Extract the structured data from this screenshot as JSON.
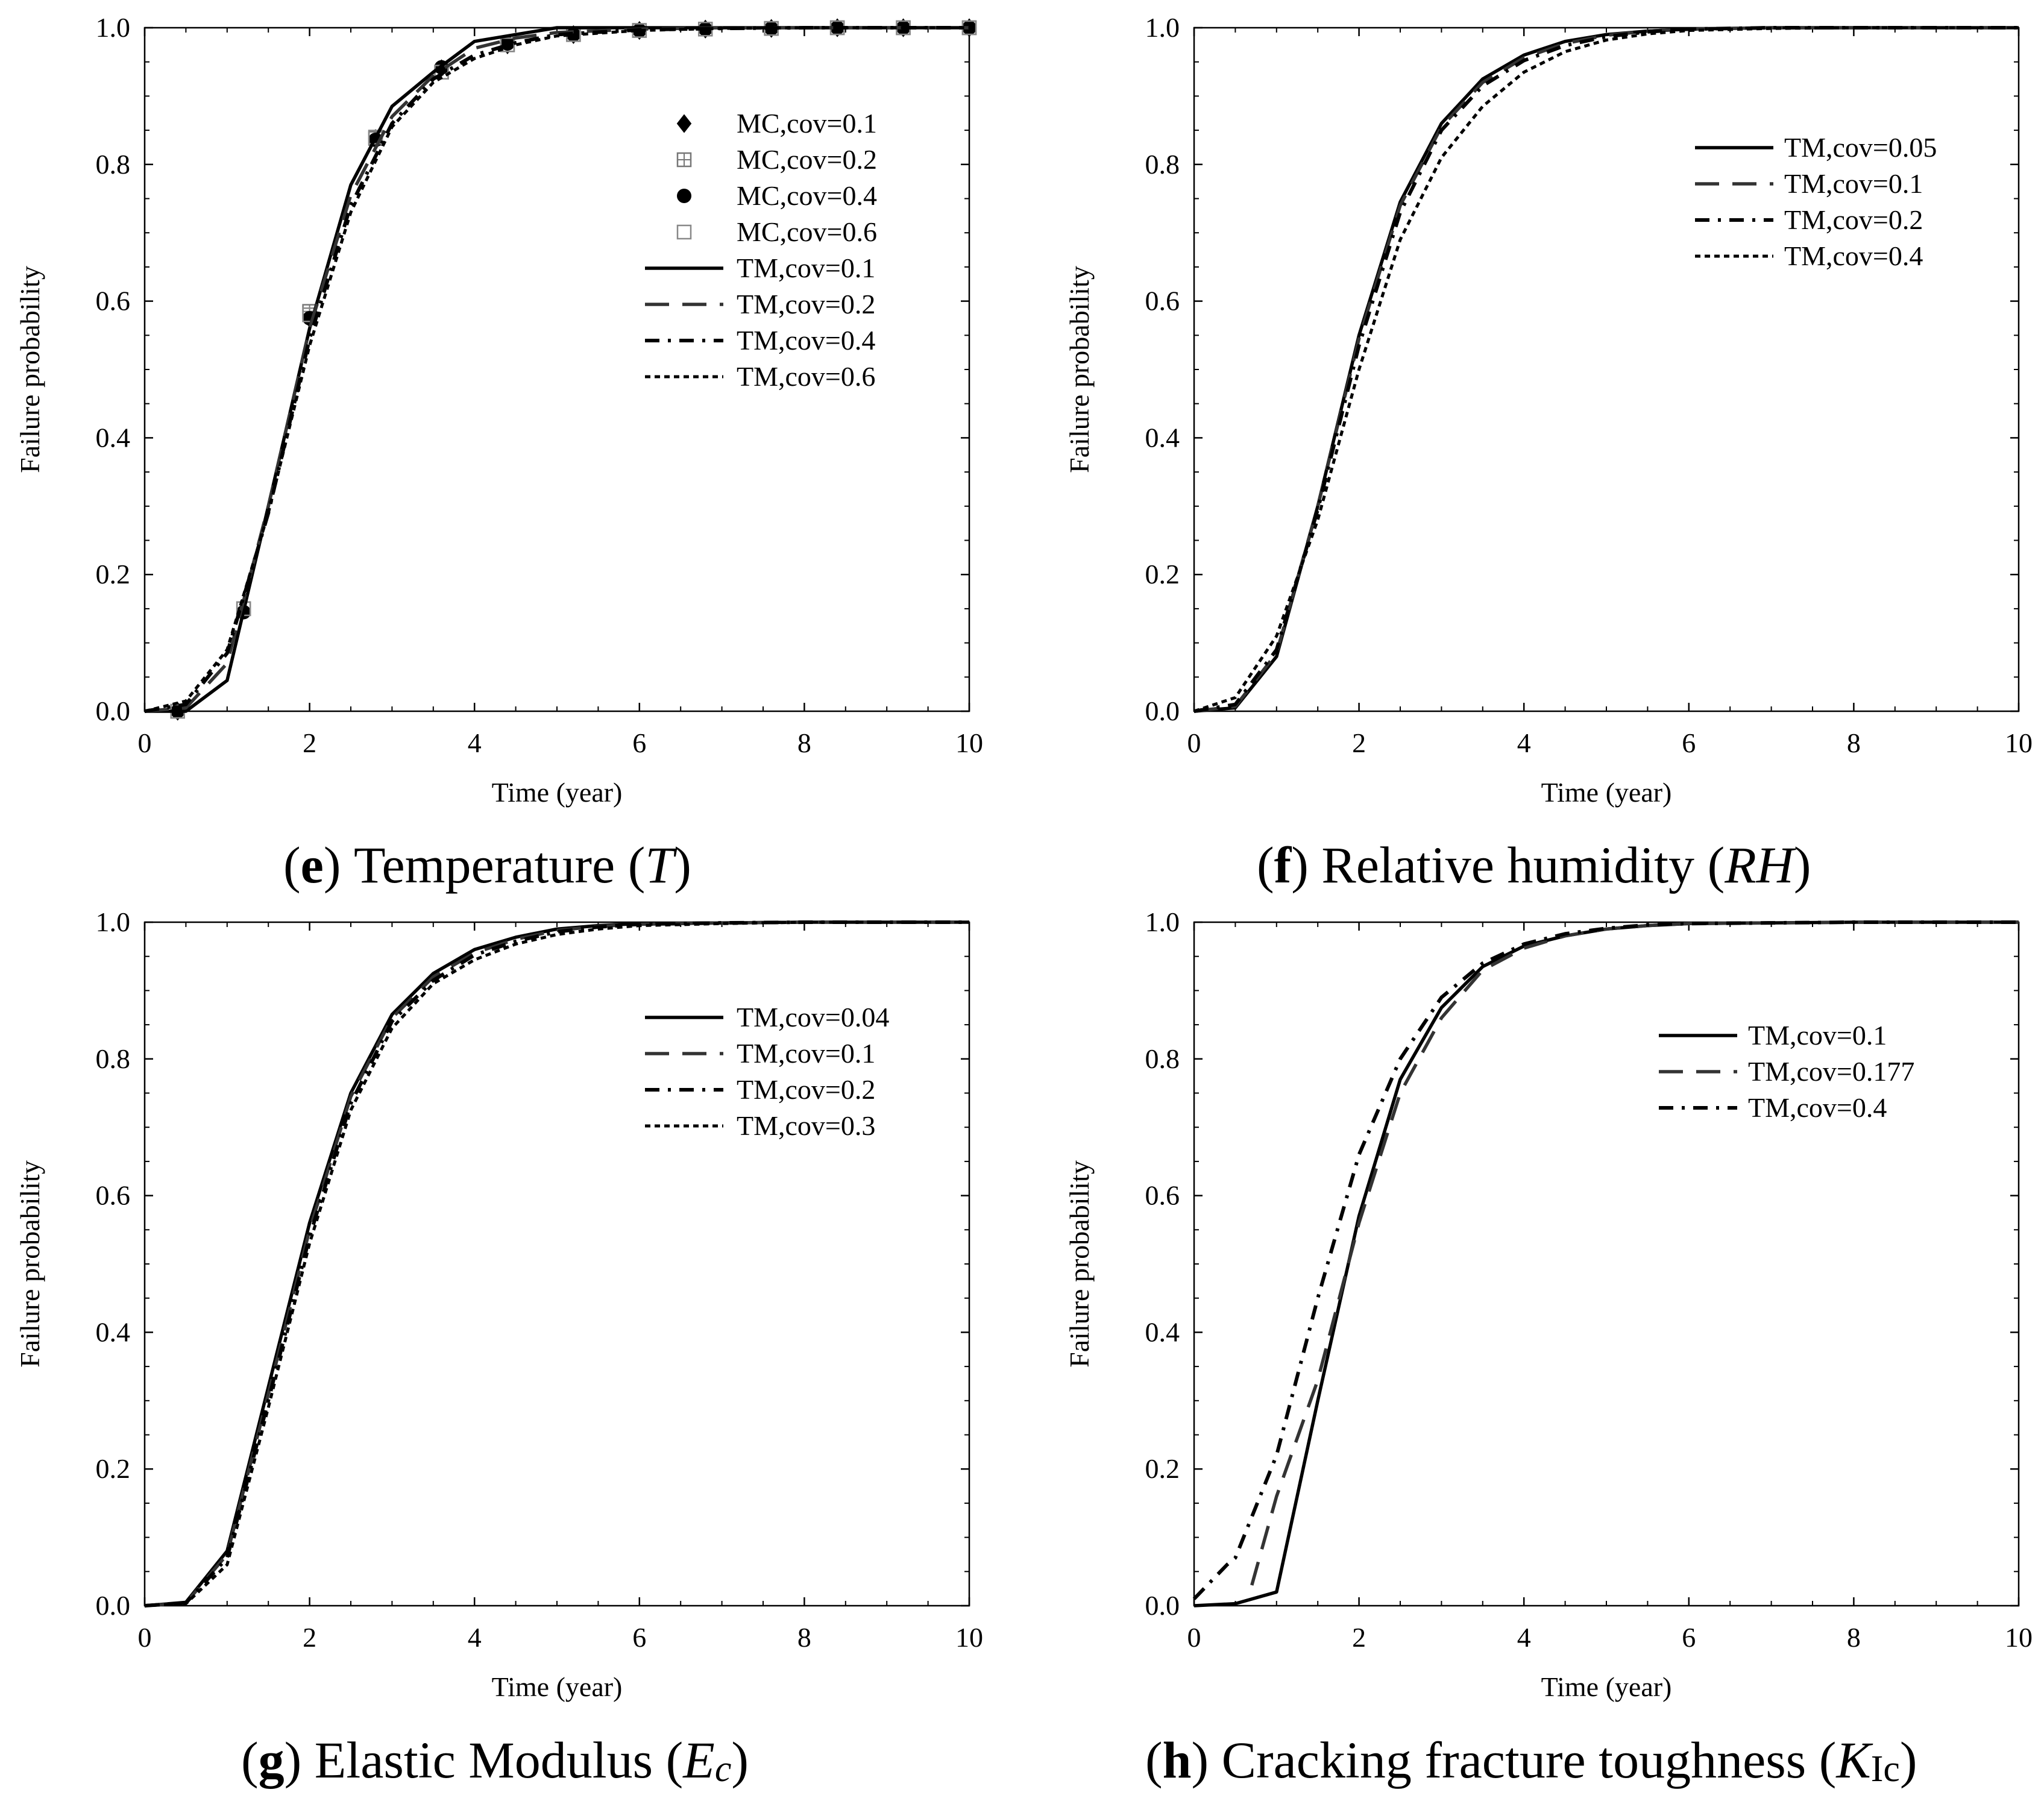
{
  "chart_data": [
    {
      "type": "line",
      "panel": "e",
      "caption": {
        "letter": "e",
        "text": "Temperature",
        "symbol": "T",
        "open": "(",
        "close": ")"
      },
      "xlabel": "Time (year)",
      "ylabel": "Failure probability",
      "xlim": [
        0,
        10
      ],
      "ylim": [
        0,
        1
      ],
      "xticks": [
        "0",
        "2",
        "4",
        "6",
        "8",
        "10"
      ],
      "yticks": [
        "0.0",
        "0.2",
        "0.4",
        "0.6",
        "0.8",
        "1.0"
      ],
      "legend_position": "top-right",
      "series": [
        {
          "name": "MC,cov=0.1",
          "kind": "marker",
          "marker": "diamond",
          "x": [
            0.4,
            1.2,
            2.0,
            2.8,
            3.6,
            4.4,
            5.2,
            6.0,
            6.8,
            7.6,
            8.4,
            9.2,
            10
          ],
          "y": [
            0.0,
            0.15,
            0.575,
            0.838,
            0.94,
            0.975,
            0.99,
            0.996,
            0.998,
            0.999,
            1.0,
            1.0,
            1.0
          ]
        },
        {
          "name": "MC,cov=0.2",
          "kind": "marker",
          "marker": "square-plus",
          "x": [
            0.4,
            1.2,
            2.0,
            2.8,
            3.6,
            4.4,
            5.2,
            6.0,
            6.8,
            7.6,
            8.4,
            9.2,
            10
          ],
          "y": [
            0.0,
            0.15,
            0.585,
            0.838,
            0.935,
            0.975,
            0.99,
            0.996,
            0.998,
            0.999,
            1.0,
            1.0,
            1.0
          ]
        },
        {
          "name": "MC,cov=0.4",
          "kind": "marker",
          "marker": "circle",
          "x": [
            0.4,
            1.2,
            2.0,
            2.8,
            3.6,
            4.4,
            5.2,
            6.0,
            6.8,
            7.6,
            8.4,
            9.2,
            10
          ],
          "y": [
            0.0,
            0.145,
            0.575,
            0.836,
            0.942,
            0.977,
            0.99,
            0.996,
            0.998,
            0.999,
            1.0,
            1.0,
            1.0
          ]
        },
        {
          "name": "MC,cov=0.6",
          "kind": "marker",
          "marker": "open-square",
          "x": [
            0.4,
            1.2,
            2.0,
            2.8,
            3.6,
            4.4,
            5.2,
            6.0,
            6.8,
            7.6,
            8.4,
            9.2,
            10
          ],
          "y": [
            0.0,
            0.15,
            0.58,
            0.84,
            0.935,
            0.975,
            0.99,
            0.996,
            0.998,
            0.999,
            1.0,
            1.0,
            1.0
          ]
        },
        {
          "name": "TM,cov=0.1",
          "kind": "line",
          "dash": "solid",
          "x": [
            0,
            0.5,
            1.0,
            1.5,
            2.0,
            2.5,
            3.0,
            3.5,
            4.0,
            4.5,
            5.0,
            6.0,
            7.0,
            8.0,
            9.0,
            10.0
          ],
          "y": [
            0,
            0.0,
            0.045,
            0.3,
            0.56,
            0.77,
            0.885,
            0.935,
            0.98,
            0.99,
            1.0,
            1.0,
            1.0,
            1.0,
            1.0,
            1.0
          ]
        },
        {
          "name": "TM,cov=0.2",
          "kind": "line",
          "dash": "longdash",
          "x": [
            0,
            0.5,
            1.0,
            1.5,
            2.0,
            2.5,
            3.0,
            3.5,
            4.0,
            4.5,
            5.0,
            6.0,
            7.0,
            8.0,
            9.0,
            10.0
          ],
          "y": [
            0,
            0.005,
            0.07,
            0.3,
            0.56,
            0.755,
            0.87,
            0.93,
            0.97,
            0.985,
            0.993,
            0.998,
            1.0,
            1.0,
            1.0,
            1.0
          ]
        },
        {
          "name": "TM,cov=0.4",
          "kind": "line",
          "dash": "dashdot",
          "x": [
            0,
            0.5,
            1.0,
            1.5,
            2.0,
            2.5,
            3.0,
            3.5,
            4.0,
            4.5,
            5.0,
            6.0,
            7.0,
            8.0,
            9.0,
            10.0
          ],
          "y": [
            0,
            0.01,
            0.085,
            0.29,
            0.545,
            0.74,
            0.86,
            0.925,
            0.96,
            0.978,
            0.99,
            0.997,
            0.999,
            1.0,
            1.0,
            1.0
          ]
        },
        {
          "name": "TM,cov=0.6",
          "kind": "line",
          "dash": "dotted",
          "x": [
            0,
            0.5,
            1.0,
            1.5,
            2.0,
            2.5,
            3.0,
            3.5,
            4.0,
            4.5,
            5.0,
            6.0,
            7.0,
            8.0,
            9.0,
            10.0
          ],
          "y": [
            0,
            0.015,
            0.09,
            0.29,
            0.535,
            0.73,
            0.855,
            0.92,
            0.955,
            0.975,
            0.988,
            0.996,
            0.999,
            1.0,
            1.0,
            1.0
          ]
        }
      ]
    },
    {
      "type": "line",
      "panel": "f",
      "caption": {
        "letter": "f",
        "text": "Relative humidity",
        "symbol": "RH",
        "open": "(",
        "close": ")"
      },
      "xlabel": "Time (year)",
      "ylabel": "Failure probability",
      "xlim": [
        0,
        10
      ],
      "ylim": [
        0,
        1
      ],
      "xticks": [
        "0",
        "2",
        "4",
        "6",
        "8",
        "10"
      ],
      "yticks": [
        "0.0",
        "0.2",
        "0.4",
        "0.6",
        "0.8",
        "1.0"
      ],
      "legend_position": "top-right",
      "series": [
        {
          "name": "TM,cov=0.05",
          "kind": "line",
          "dash": "solid",
          "x": [
            0,
            0.5,
            1.0,
            1.5,
            2.0,
            2.5,
            3.0,
            3.5,
            4.0,
            4.5,
            5.0,
            5.5,
            6.0,
            7.0,
            8.0,
            9.0,
            10.0
          ],
          "y": [
            0,
            0.005,
            0.08,
            0.3,
            0.55,
            0.745,
            0.86,
            0.925,
            0.96,
            0.98,
            0.99,
            0.995,
            0.998,
            1.0,
            1.0,
            1.0,
            1.0
          ]
        },
        {
          "name": "TM,cov=0.1",
          "kind": "line",
          "dash": "longdash",
          "x": [
            0,
            0.5,
            1.0,
            1.5,
            2.0,
            2.5,
            3.0,
            3.5,
            4.0,
            4.5,
            5.0,
            5.5,
            6.0,
            7.0,
            8.0,
            9.0,
            10.0
          ],
          "y": [
            0,
            0.007,
            0.085,
            0.3,
            0.545,
            0.74,
            0.855,
            0.92,
            0.956,
            0.977,
            0.989,
            0.995,
            0.998,
            1.0,
            1.0,
            1.0,
            1.0
          ]
        },
        {
          "name": "TM,cov=0.2",
          "kind": "line",
          "dash": "dashdot",
          "x": [
            0,
            0.5,
            1.0,
            1.5,
            2.0,
            2.5,
            3.0,
            3.5,
            4.0,
            4.5,
            5.0,
            5.5,
            6.0,
            7.0,
            8.0,
            9.0,
            10.0
          ],
          "y": [
            0,
            0.01,
            0.09,
            0.295,
            0.535,
            0.73,
            0.85,
            0.915,
            0.952,
            0.974,
            0.987,
            0.994,
            0.998,
            1.0,
            1.0,
            1.0,
            1.0
          ]
        },
        {
          "name": "TM,cov=0.4",
          "kind": "line",
          "dash": "dotted",
          "x": [
            0,
            0.5,
            1.0,
            1.5,
            2.0,
            2.5,
            3.0,
            3.5,
            4.0,
            4.5,
            5.0,
            5.5,
            6.0,
            7.0,
            8.0,
            9.0,
            10.0
          ],
          "y": [
            0,
            0.02,
            0.11,
            0.28,
            0.5,
            0.69,
            0.81,
            0.885,
            0.935,
            0.965,
            0.982,
            0.991,
            0.996,
            0.999,
            1.0,
            1.0,
            1.0
          ]
        }
      ]
    },
    {
      "type": "line",
      "panel": "g",
      "caption": {
        "letter": "g",
        "text": "Elastic Modulus",
        "symbol": "E",
        "symbol_sub": "c",
        "open": "(",
        "close": ")"
      },
      "xlabel": "Time (year)",
      "ylabel": "Failure probability",
      "xlim": [
        0,
        10
      ],
      "ylim": [
        0,
        1
      ],
      "xticks": [
        "0",
        "2",
        "4",
        "6",
        "8",
        "10"
      ],
      "yticks": [
        "0.0",
        "0.2",
        "0.4",
        "0.6",
        "0.8",
        "1.0"
      ],
      "legend_position": "top-right",
      "series": [
        {
          "name": "TM,cov=0.04",
          "kind": "line",
          "dash": "solid",
          "x": [
            0,
            0.5,
            1.0,
            1.5,
            2.0,
            2.5,
            3.0,
            3.5,
            4.0,
            4.5,
            5.0,
            5.5,
            6.0,
            7.0,
            8.0,
            9.0,
            10.0
          ],
          "y": [
            0,
            0.005,
            0.08,
            0.32,
            0.56,
            0.75,
            0.865,
            0.925,
            0.96,
            0.978,
            0.99,
            0.995,
            0.998,
            0.999,
            1.0,
            1.0,
            1.0
          ]
        },
        {
          "name": "TM,cov=0.1",
          "kind": "line",
          "dash": "longdash",
          "x": [
            0,
            0.5,
            1.0,
            1.5,
            2.0,
            2.5,
            3.0,
            3.5,
            4.0,
            4.5,
            5.0,
            5.5,
            6.0,
            7.0,
            8.0,
            9.0,
            10.0
          ],
          "y": [
            0,
            0.004,
            0.075,
            0.31,
            0.55,
            0.745,
            0.86,
            0.92,
            0.955,
            0.975,
            0.988,
            0.994,
            0.997,
            0.999,
            1.0,
            1.0,
            1.0
          ]
        },
        {
          "name": "TM,cov=0.2",
          "kind": "line",
          "dash": "dashdot",
          "x": [
            0,
            0.5,
            1.0,
            1.5,
            2.0,
            2.5,
            3.0,
            3.5,
            4.0,
            4.5,
            5.0,
            5.5,
            6.0,
            7.0,
            8.0,
            9.0,
            10.0
          ],
          "y": [
            0,
            0.004,
            0.07,
            0.3,
            0.54,
            0.735,
            0.855,
            0.915,
            0.952,
            0.972,
            0.986,
            0.993,
            0.997,
            0.999,
            1.0,
            1.0,
            1.0
          ]
        },
        {
          "name": "TM,cov=0.3",
          "kind": "line",
          "dash": "dotted",
          "x": [
            0,
            0.5,
            1.0,
            1.5,
            2.0,
            2.5,
            3.0,
            3.5,
            4.0,
            4.5,
            5.0,
            5.5,
            6.0,
            7.0,
            8.0,
            9.0,
            10.0
          ],
          "y": [
            0,
            0.003,
            0.06,
            0.29,
            0.53,
            0.725,
            0.845,
            0.91,
            0.945,
            0.968,
            0.982,
            0.99,
            0.995,
            0.998,
            1.0,
            1.0,
            1.0
          ]
        }
      ]
    },
    {
      "type": "line",
      "panel": "h",
      "caption": {
        "letter": "h",
        "text": "Cracking fracture toughness",
        "symbol": "K",
        "symbol_sub": "Ic",
        "open": "(",
        "close": ")"
      },
      "xlabel": "Time (year)",
      "ylabel": "Failure probability",
      "xlim": [
        0,
        10
      ],
      "ylim": [
        0,
        1
      ],
      "xticks": [
        "0",
        "2",
        "4",
        "6",
        "8",
        "10"
      ],
      "yticks": [
        "0.0",
        "0.2",
        "0.4",
        "0.6",
        "0.8",
        "1.0"
      ],
      "legend_position": "top-right",
      "series": [
        {
          "name": "TM,cov=0.1",
          "kind": "line",
          "dash": "solid",
          "x": [
            0,
            0.5,
            1.0,
            1.5,
            2.0,
            2.5,
            3.0,
            3.5,
            4.0,
            4.5,
            5.0,
            5.5,
            6.0,
            7.0,
            8.0,
            9.0,
            10.0
          ],
          "y": [
            0,
            0.003,
            0.02,
            0.3,
            0.57,
            0.77,
            0.875,
            0.935,
            0.965,
            0.98,
            0.99,
            0.995,
            0.998,
            0.999,
            1.0,
            1.0,
            1.0
          ]
        },
        {
          "name": "TM,cov=0.177",
          "kind": "line",
          "dash": "longdash",
          "x": [
            0.7,
            1.0,
            1.5,
            2.0,
            2.5,
            3.0,
            3.5,
            4.0,
            4.5,
            5.0,
            5.5,
            6.0,
            7.0,
            8.0,
            9.0,
            10.0
          ],
          "y": [
            0.03,
            0.16,
            0.33,
            0.56,
            0.75,
            0.86,
            0.93,
            0.962,
            0.98,
            0.99,
            0.995,
            0.998,
            0.999,
            1.0,
            1.0,
            1.0
          ]
        },
        {
          "name": "TM,cov=0.4",
          "kind": "line",
          "dash": "dashdot",
          "x": [
            0,
            0.4,
            0.5,
            1.0,
            1.5,
            2.0,
            2.5,
            3.0,
            3.5,
            4.0,
            4.5,
            5.0,
            5.5,
            6.0,
            7.0,
            8.0,
            9.0,
            10.0
          ],
          "y": [
            0.01,
            0.06,
            0.07,
            0.22,
            0.45,
            0.66,
            0.8,
            0.89,
            0.94,
            0.968,
            0.983,
            0.991,
            0.996,
            0.998,
            0.999,
            1.0,
            1.0,
            1.0
          ]
        }
      ]
    }
  ]
}
